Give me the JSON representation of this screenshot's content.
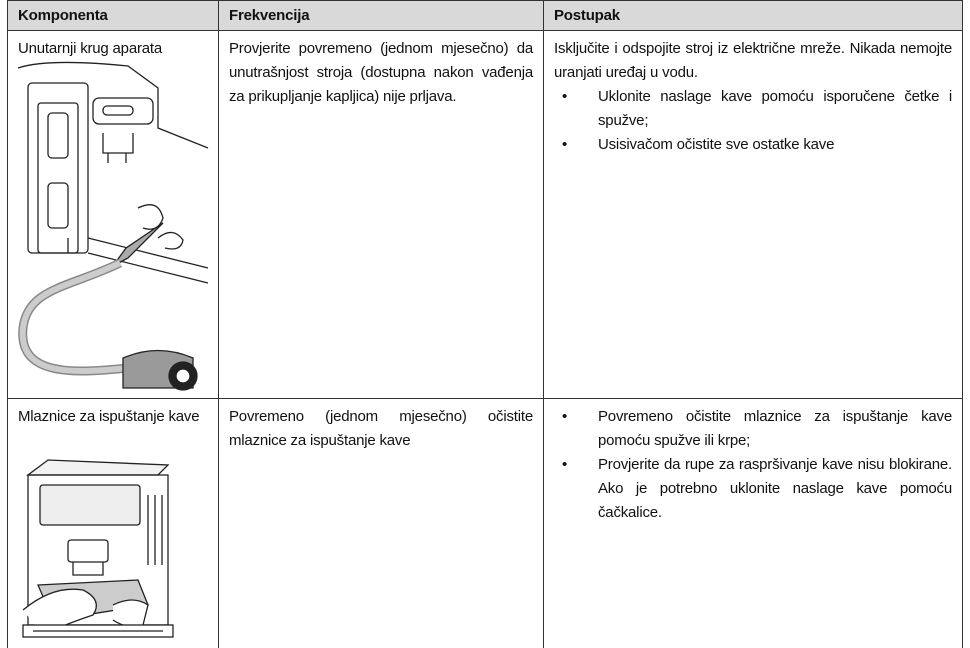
{
  "table": {
    "headers": [
      "Komponenta",
      "Frekvencija",
      "Postupak"
    ],
    "rows": [
      {
        "component": "Unutarnji krug aparata",
        "frequency": "Provjerite povremeno (jednom mjesečno) da unutrašnjost stroja (dostupna nakon vađenja za prikupljanje kapljica) nije prljava.",
        "procedure": {
          "intro": "Isključite i odspojite stroj iz električne mreže. Nikada nemojte uranjati uređaj u vodu.",
          "bullets": [
            "Uklonite naslage kave pomoću isporučene četke i spužve;",
            "Usisivačom očistite sve ostatke kave"
          ]
        }
      },
      {
        "component": "Mlaznice za ispuštanje kave",
        "frequency": "Povremeno (jednom mjesečno) očistite mlaznice za ispuštanje kave",
        "procedure": {
          "bullets": [
            "Povremeno očistite mlaznice za ispuštanje kave pomoću spužve ili krpe;",
            "Provjerite da rupe za raspršivanje kave nisu blokirane. Ako je potrebno uklonite naslage kave pomoću čačkalice."
          ]
        }
      }
    ]
  }
}
